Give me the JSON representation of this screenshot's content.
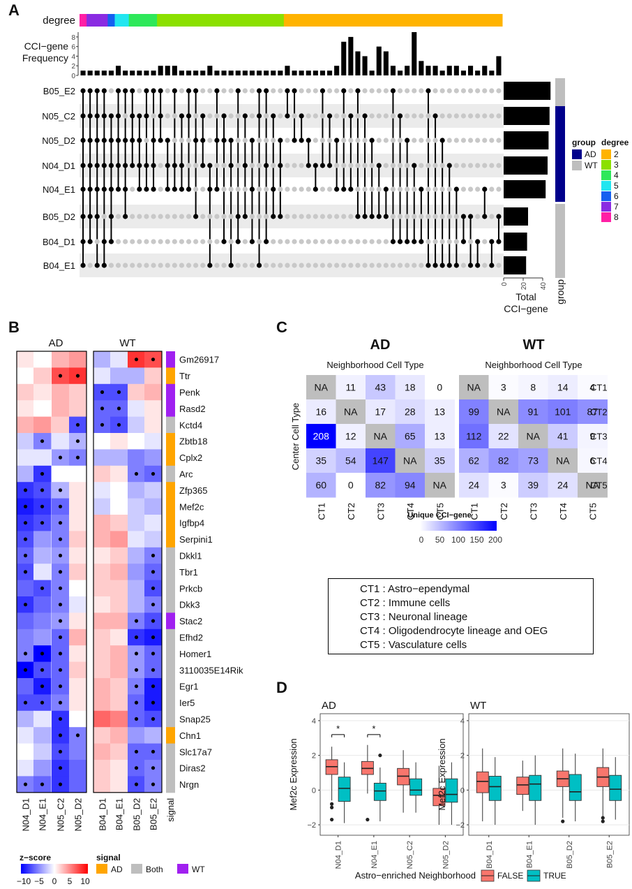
{
  "panels": {
    "a": "A",
    "b": "B",
    "c": "C",
    "d": "D"
  },
  "panelA": {
    "degree_label": "degree",
    "freq_label_1": "CCI−gene",
    "freq_label_2": "Frequency",
    "freq_ticks": [
      "0",
      "2",
      "4",
      "6",
      "8"
    ],
    "sets": [
      "B05_E2",
      "N05_C2",
      "N05_D2",
      "N04_D1",
      "N04_E1",
      "B05_D2",
      "B04_D1",
      "B04_E1"
    ],
    "set_totals": [
      48,
      47,
      46,
      45,
      43,
      25,
      24,
      23
    ],
    "set_groups": [
      "WT",
      "AD",
      "AD",
      "AD",
      "AD",
      "WT",
      "WT",
      "WT"
    ],
    "total_ticks": [
      "0",
      "20",
      "40"
    ],
    "total_label_1": "Total",
    "total_label_2": "CCI−gene",
    "group_label": "group",
    "group_legend": {
      "title": "group",
      "items": [
        {
          "label": "AD",
          "color": "#00008B"
        },
        {
          "label": "WT",
          "color": "#BEBEBE"
        }
      ]
    },
    "degree_legend": {
      "title": "degree",
      "items": [
        {
          "label": "2",
          "color": "#FFB300"
        },
        {
          "label": "3",
          "color": "#8BE000"
        },
        {
          "label": "4",
          "color": "#2EE85A"
        },
        {
          "label": "5",
          "color": "#22E6F0"
        },
        {
          "label": "6",
          "color": "#1560F0"
        },
        {
          "label": "7",
          "color": "#8A2BE2"
        },
        {
          "label": "8",
          "color": "#FF1FA5"
        }
      ]
    },
    "intersections": [
      {
        "sets": [
          0,
          1,
          2,
          3,
          4,
          5,
          6,
          7
        ],
        "freq": 1
      },
      {
        "sets": [
          0,
          1,
          2,
          3,
          4,
          5,
          6
        ],
        "freq": 1
      },
      {
        "sets": [
          0,
          1,
          2,
          3,
          4,
          5,
          7
        ],
        "freq": 1
      },
      {
        "sets": [
          0,
          1,
          2,
          3,
          4,
          6,
          7
        ],
        "freq": 1
      },
      {
        "sets": [
          1,
          2,
          3,
          4,
          5,
          6
        ],
        "freq": 1
      },
      {
        "sets": [
          0,
          1,
          2,
          3,
          4
        ],
        "freq": 2
      },
      {
        "sets": [
          0,
          2,
          3,
          4,
          5
        ],
        "freq": 1
      },
      {
        "sets": [
          0,
          1,
          2,
          3
        ],
        "freq": 1
      },
      {
        "sets": [
          1,
          2,
          3,
          4
        ],
        "freq": 1
      },
      {
        "sets": [
          0,
          1,
          3,
          4
        ],
        "freq": 1
      },
      {
        "sets": [
          0,
          2,
          3,
          4
        ],
        "freq": 1
      },
      {
        "sets": [
          0,
          1,
          2
        ],
        "freq": 2
      },
      {
        "sets": [
          2,
          3,
          4
        ],
        "freq": 2
      },
      {
        "sets": [
          0,
          3,
          4
        ],
        "freq": 2
      },
      {
        "sets": [
          1,
          3,
          4
        ],
        "freq": 1
      },
      {
        "sets": [
          0,
          1,
          4
        ],
        "freq": 1
      },
      {
        "sets": [
          0,
          2,
          5
        ],
        "freq": 1
      },
      {
        "sets": [
          1,
          2,
          3
        ],
        "freq": 1
      },
      {
        "sets": [
          3,
          4,
          7
        ],
        "freq": 2
      },
      {
        "sets": [
          0,
          2,
          4
        ],
        "freq": 1
      },
      {
        "sets": [
          1,
          2,
          6
        ],
        "freq": 1
      },
      {
        "sets": [
          2,
          3,
          7
        ],
        "freq": 1
      },
      {
        "sets": [
          0,
          5,
          6
        ],
        "freq": 1
      },
      {
        "sets": [
          1,
          3,
          5
        ],
        "freq": 1
      },
      {
        "sets": [
          2,
          4,
          6
        ],
        "freq": 1
      },
      {
        "sets": [
          0,
          1,
          7
        ],
        "freq": 1
      },
      {
        "sets": [
          0,
          3,
          6
        ],
        "freq": 1
      },
      {
        "sets": [
          1,
          4,
          5
        ],
        "freq": 1
      },
      {
        "sets": [
          2,
          3,
          5
        ],
        "freq": 1
      },
      {
        "sets": [
          0,
          1
        ],
        "freq": 2
      },
      {
        "sets": [
          0,
          2
        ],
        "freq": 1
      },
      {
        "sets": [
          1,
          2
        ],
        "freq": 1
      },
      {
        "sets": [
          2,
          3
        ],
        "freq": 1
      },
      {
        "sets": [
          3,
          4
        ],
        "freq": 1
      },
      {
        "sets": [
          0,
          3
        ],
        "freq": 1
      },
      {
        "sets": [
          1,
          3
        ],
        "freq": 1
      },
      {
        "sets": [
          2,
          4
        ],
        "freq": 2
      },
      {
        "sets": [
          0,
          4
        ],
        "freq": 7
      },
      {
        "sets": [
          1,
          4
        ],
        "freq": 8
      },
      {
        "sets": [
          0,
          5
        ],
        "freq": 5
      },
      {
        "sets": [
          1,
          5
        ],
        "freq": 4
      },
      {
        "sets": [
          2,
          5
        ],
        "freq": 1
      },
      {
        "sets": [
          3,
          5
        ],
        "freq": 6
      },
      {
        "sets": [
          4,
          5
        ],
        "freq": 5
      },
      {
        "sets": [
          0,
          6
        ],
        "freq": 2
      },
      {
        "sets": [
          1,
          6
        ],
        "freq": 1
      },
      {
        "sets": [
          2,
          6
        ],
        "freq": 2
      },
      {
        "sets": [
          3,
          6
        ],
        "freq": 9
      },
      {
        "sets": [
          4,
          6
        ],
        "freq": 3
      },
      {
        "sets": [
          0,
          7
        ],
        "freq": 2
      },
      {
        "sets": [
          1,
          7
        ],
        "freq": 2
      },
      {
        "sets": [
          2,
          7
        ],
        "freq": 1
      },
      {
        "sets": [
          3,
          7
        ],
        "freq": 2
      },
      {
        "sets": [
          4,
          7
        ],
        "freq": 2
      },
      {
        "sets": [
          5,
          6
        ],
        "freq": 1
      },
      {
        "sets": [
          5,
          7
        ],
        "freq": 2
      },
      {
        "sets": [
          6,
          7
        ],
        "freq": 1
      },
      {
        "sets": [
          4,
          5
        ],
        "freq": 2
      },
      {
        "sets": [
          6,
          7
        ],
        "freq": 1
      },
      {
        "sets": [
          5,
          6
        ],
        "freq": 4
      }
    ]
  },
  "panelB": {
    "ad_label": "AD",
    "wt_label": "WT",
    "columns": [
      "N04_D1",
      "N04_E1",
      "N05_C2",
      "N05_D2",
      "B04_D1",
      "B04_E1",
      "B05_D2",
      "B05_E2"
    ],
    "signal_label": "signal",
    "genes": [
      "Gm26917",
      "Ttr",
      "Penk",
      "Rasd2",
      "Kctd4",
      "Zbtb18",
      "Cplx2",
      "Arc",
      "Zfp365",
      "Mef2c",
      "Igfbp4",
      "Serpini1",
      "Dkkl1",
      "Tbr1",
      "Prkcb",
      "Dkk3",
      "Stac2",
      "Efhd2",
      "Homer1",
      "3110035E14Rik",
      "Egr1",
      "Ier5",
      "Snap25",
      "Chn1",
      "Slc17a7",
      "Diras2",
      "Nrgn"
    ],
    "signals": [
      "WT",
      "AD",
      "WT",
      "WT",
      "Both",
      "AD",
      "AD",
      "Both",
      "AD",
      "AD",
      "AD",
      "AD",
      "Both",
      "Both",
      "Both",
      "Both",
      "WT",
      "Both",
      "Both",
      "Both",
      "Both",
      "Both",
      "Both",
      "AD",
      "Both",
      "Both",
      "Both"
    ],
    "zscores": [
      [
        1,
        0,
        3,
        4,
        -3,
        -1,
        8,
        7
      ],
      [
        0,
        2,
        7,
        8,
        -1,
        -3,
        -3,
        2
      ],
      [
        2,
        1,
        3,
        2,
        -7,
        -7,
        2,
        3
      ],
      [
        1,
        0,
        3,
        2,
        -6,
        -6,
        -1,
        1
      ],
      [
        3,
        4,
        2,
        -7,
        -6,
        -7,
        -2,
        1
      ],
      [
        -2,
        -5,
        -1,
        -3,
        0,
        1,
        0,
        -1
      ],
      [
        -1,
        -1,
        -4,
        -5,
        -3,
        -3,
        -5,
        -4
      ],
      [
        -3,
        -8,
        0,
        0,
        2,
        1,
        -5,
        -6
      ],
      [
        -8,
        -7,
        -3,
        1,
        -1,
        0,
        -3,
        -2
      ],
      [
        -9,
        -8,
        -6,
        1,
        -2,
        0,
        -2,
        -3
      ],
      [
        -8,
        -7,
        -5,
        1,
        3,
        2,
        -2,
        -1
      ],
      [
        -7,
        -4,
        -5,
        2,
        3,
        4,
        -1,
        -2
      ],
      [
        -6,
        -3,
        -4,
        1,
        1,
        2,
        -3,
        -5
      ],
      [
        -7,
        -1,
        -5,
        2,
        2,
        3,
        -4,
        -6
      ],
      [
        -6,
        -7,
        -5,
        0,
        2,
        2,
        -3,
        -7
      ],
      [
        -8,
        -6,
        -5,
        -1,
        1,
        2,
        -3,
        -5
      ],
      [
        -6,
        -5,
        -4,
        1,
        3,
        3,
        -5,
        -7
      ],
      [
        -5,
        -4,
        -6,
        3,
        2,
        1,
        -8,
        -9
      ],
      [
        -5,
        -10,
        -6,
        1,
        2,
        3,
        -4,
        -6
      ],
      [
        -10,
        -7,
        -6,
        2,
        2,
        3,
        -4,
        -6
      ],
      [
        -6,
        -9,
        -6,
        1,
        3,
        2,
        -5,
        -9
      ],
      [
        -7,
        -7,
        -5,
        1,
        3,
        2,
        -6,
        -9
      ],
      [
        -3,
        -1,
        -8,
        0,
        6,
        5,
        -6,
        -7
      ],
      [
        -1,
        -3,
        -8,
        -5,
        2,
        3,
        -4,
        -3
      ],
      [
        0,
        -2,
        -7,
        -5,
        3,
        2,
        -6,
        -6
      ],
      [
        -1,
        -4,
        -8,
        -6,
        2,
        1,
        -6,
        -5
      ],
      [
        -5,
        -6,
        -8,
        -6,
        2,
        1,
        -7,
        -5
      ]
    ],
    "dots": [
      [
        0,
        0,
        0,
        0,
        0,
        0,
        1,
        1
      ],
      [
        0,
        0,
        1,
        1,
        0,
        0,
        0,
        0
      ],
      [
        0,
        0,
        0,
        0,
        1,
        1,
        0,
        0
      ],
      [
        0,
        0,
        0,
        0,
        1,
        1,
        0,
        0
      ],
      [
        0,
        0,
        0,
        1,
        1,
        1,
        0,
        0
      ],
      [
        0,
        1,
        0,
        1,
        0,
        0,
        0,
        0
      ],
      [
        0,
        0,
        1,
        1,
        0,
        0,
        0,
        0
      ],
      [
        0,
        1,
        0,
        0,
        0,
        0,
        1,
        1
      ],
      [
        1,
        1,
        1,
        0,
        0,
        0,
        0,
        0
      ],
      [
        1,
        1,
        1,
        0,
        0,
        0,
        0,
        0
      ],
      [
        1,
        1,
        1,
        0,
        0,
        0,
        0,
        0
      ],
      [
        1,
        0,
        1,
        0,
        0,
        0,
        0,
        0
      ],
      [
        1,
        0,
        1,
        0,
        0,
        0,
        0,
        1
      ],
      [
        1,
        0,
        1,
        0,
        0,
        0,
        0,
        1
      ],
      [
        0,
        1,
        1,
        0,
        0,
        0,
        0,
        1
      ],
      [
        1,
        0,
        1,
        0,
        0,
        0,
        0,
        1
      ],
      [
        0,
        0,
        1,
        0,
        0,
        0,
        1,
        1
      ],
      [
        0,
        0,
        1,
        0,
        0,
        0,
        1,
        1
      ],
      [
        1,
        1,
        1,
        0,
        0,
        0,
        1,
        1
      ],
      [
        1,
        1,
        1,
        0,
        0,
        0,
        1,
        1
      ],
      [
        0,
        1,
        1,
        0,
        0,
        0,
        1,
        1
      ],
      [
        1,
        1,
        1,
        0,
        0,
        0,
        1,
        1
      ],
      [
        0,
        0,
        1,
        0,
        0,
        0,
        1,
        1
      ],
      [
        0,
        0,
        1,
        1,
        0,
        0,
        0,
        0
      ],
      [
        0,
        0,
        1,
        0,
        0,
        0,
        1,
        1
      ],
      [
        0,
        0,
        1,
        0,
        0,
        0,
        1,
        1
      ],
      [
        1,
        1,
        1,
        0,
        0,
        0,
        1,
        1
      ]
    ],
    "zscore_title": "z−score",
    "zscore_ticks": [
      "−10",
      "−5",
      "0",
      "5",
      "10"
    ],
    "signal_legend": {
      "title": "signal",
      "items": [
        {
          "label": "AD",
          "color": "#FFA500"
        },
        {
          "label": "Both",
          "color": "#BEBEBE"
        },
        {
          "label": "WT",
          "color": "#A020F0"
        }
      ]
    }
  },
  "panelC": {
    "ad_title": "AD",
    "wt_title": "WT",
    "subtitle": "Neighborhood Cell Type",
    "ylabel": "Center Cell Type",
    "row_labels": [
      "CT1",
      "CT2",
      "CT3",
      "CT4",
      "CT5"
    ],
    "col_labels": [
      "CT1",
      "CT2",
      "CT3",
      "CT4",
      "CT5"
    ],
    "ad": [
      [
        "NA",
        "11",
        "43",
        "18",
        "0"
      ],
      [
        "16",
        "NA",
        "17",
        "28",
        "13"
      ],
      [
        "208",
        "12",
        "NA",
        "65",
        "13"
      ],
      [
        "35",
        "54",
        "147",
        "NA",
        "35"
      ],
      [
        "60",
        "0",
        "82",
        "94",
        "NA"
      ]
    ],
    "wt": [
      [
        "NA",
        "3",
        "8",
        "14",
        "4"
      ],
      [
        "99",
        "NA",
        "91",
        "101",
        "87"
      ],
      [
        "112",
        "22",
        "NA",
        "41",
        "9"
      ],
      [
        "62",
        "82",
        "73",
        "NA",
        "6"
      ],
      [
        "24",
        "3",
        "39",
        "24",
        "NA"
      ]
    ],
    "cbar_title": "Unique CCI−gene",
    "cbar_ticks": [
      "0",
      "50",
      "100",
      "150",
      "200"
    ],
    "legend": [
      "CT1 : Astro−ependymal",
      "CT2 : Immune cells",
      "CT3 : Neuronal lineage",
      "CT4 : Oligodendrocyte lineage and OEG",
      "CT5 : Vasculature cells"
    ]
  },
  "chart_data": {
    "type": "box",
    "title_ad": "AD",
    "title_wt": "WT",
    "ylabel": "Mef2c Expression",
    "yticks": [
      "−2",
      "0",
      "2",
      "4"
    ],
    "ylim": [
      -2.6,
      4.4
    ],
    "xlabel": "Astro−enriched Neighborhood",
    "legend": [
      {
        "label": "FALSE",
        "color": "#F8766D"
      },
      {
        "label": "TRUE",
        "color": "#00BFC4"
      }
    ],
    "star": "*",
    "ad": {
      "categories": [
        "N04_D1",
        "N04_E1",
        "N05_C2",
        "N05_D2"
      ],
      "false": [
        [
          -0.6,
          0.9,
          1.35,
          1.75,
          2.5
        ],
        [
          -0.2,
          0.9,
          1.25,
          1.65,
          2.6
        ],
        [
          -1.3,
          0.3,
          0.8,
          1.25,
          2.3
        ],
        [
          -2.0,
          -0.9,
          -0.3,
          0.1,
          1.4
        ]
      ],
      "true": [
        [
          -1.9,
          -0.65,
          0.1,
          0.75,
          1.6
        ],
        [
          -1.8,
          -0.6,
          -0.05,
          0.4,
          1.3
        ],
        [
          -1.3,
          -0.3,
          0.0,
          0.65,
          1.6
        ],
        [
          -2.0,
          -0.7,
          -0.25,
          0.65,
          1.6
        ]
      ],
      "outliers_false": [
        [
          -0.8,
          -1.0,
          -1.7
        ],
        [
          -1.7
        ],
        [],
        []
      ],
      "outliers_true": [
        [],
        [
          2.0
        ],
        [],
        []
      ],
      "significant": [
        true,
        true,
        false,
        false
      ]
    },
    "wt": {
      "categories": [
        "B04_D1",
        "B04_E1",
        "B05_D2",
        "B05_E2"
      ],
      "false": [
        [
          -1.8,
          -0.15,
          0.5,
          1.05,
          2.4
        ],
        [
          -1.2,
          -0.25,
          0.3,
          0.75,
          1.7
        ],
        [
          -1.6,
          0.2,
          0.65,
          1.1,
          2.4
        ],
        [
          -1.6,
          0.2,
          0.75,
          1.3,
          2.4
        ]
      ],
      "true": [
        [
          -2.0,
          -0.6,
          0.2,
          0.8,
          1.9
        ],
        [
          -2.0,
          -0.6,
          0.35,
          0.85,
          2.0
        ],
        [
          -1.8,
          -0.6,
          -0.1,
          0.9,
          2.1
        ],
        [
          -1.7,
          -0.6,
          0.05,
          0.85,
          1.9
        ]
      ],
      "outliers_false": [
        [],
        [],
        [
          -1.8
        ],
        [
          -1.6,
          -1.8
        ]
      ],
      "outliers_true": [
        [],
        [],
        [],
        []
      ]
    }
  }
}
